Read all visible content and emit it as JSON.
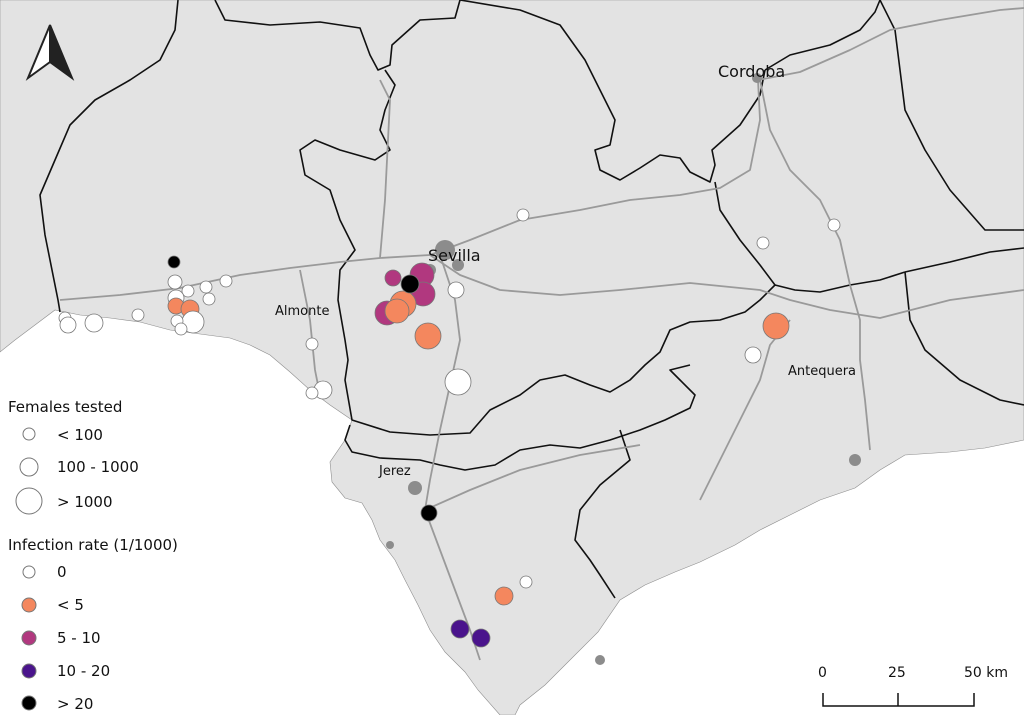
{
  "cities": {
    "cordoba": "Cordoba",
    "sevilla": "Sevilla",
    "almonte": "Almonte",
    "antequera": "Antequera",
    "jerez": "Jerez"
  },
  "legend": {
    "size_title": "Females tested",
    "size_items": [
      "< 100",
      "100 - 1000",
      "> 1000"
    ],
    "rate_title": "Infection rate (1/1000)",
    "rate_items": [
      {
        "label": "0",
        "color": "#ffffff"
      },
      {
        "label": "< 5",
        "color": "#f4875e"
      },
      {
        "label": "5 - 10",
        "color": "#b1387f"
      },
      {
        "label": "10 - 20",
        "color": "#4a148c"
      },
      {
        "label": "> 20",
        "color": "#000000"
      }
    ]
  },
  "scalebar": {
    "ticks": [
      "0",
      "25",
      "50 km"
    ]
  },
  "colors": {
    "land": "#e3e3e3",
    "sea": "#ffffff",
    "road": "#9a9a9a",
    "boundary": "#111111",
    "urban": "#8c8c8c"
  },
  "icons": {
    "north_arrow": "north-arrow-icon"
  }
}
